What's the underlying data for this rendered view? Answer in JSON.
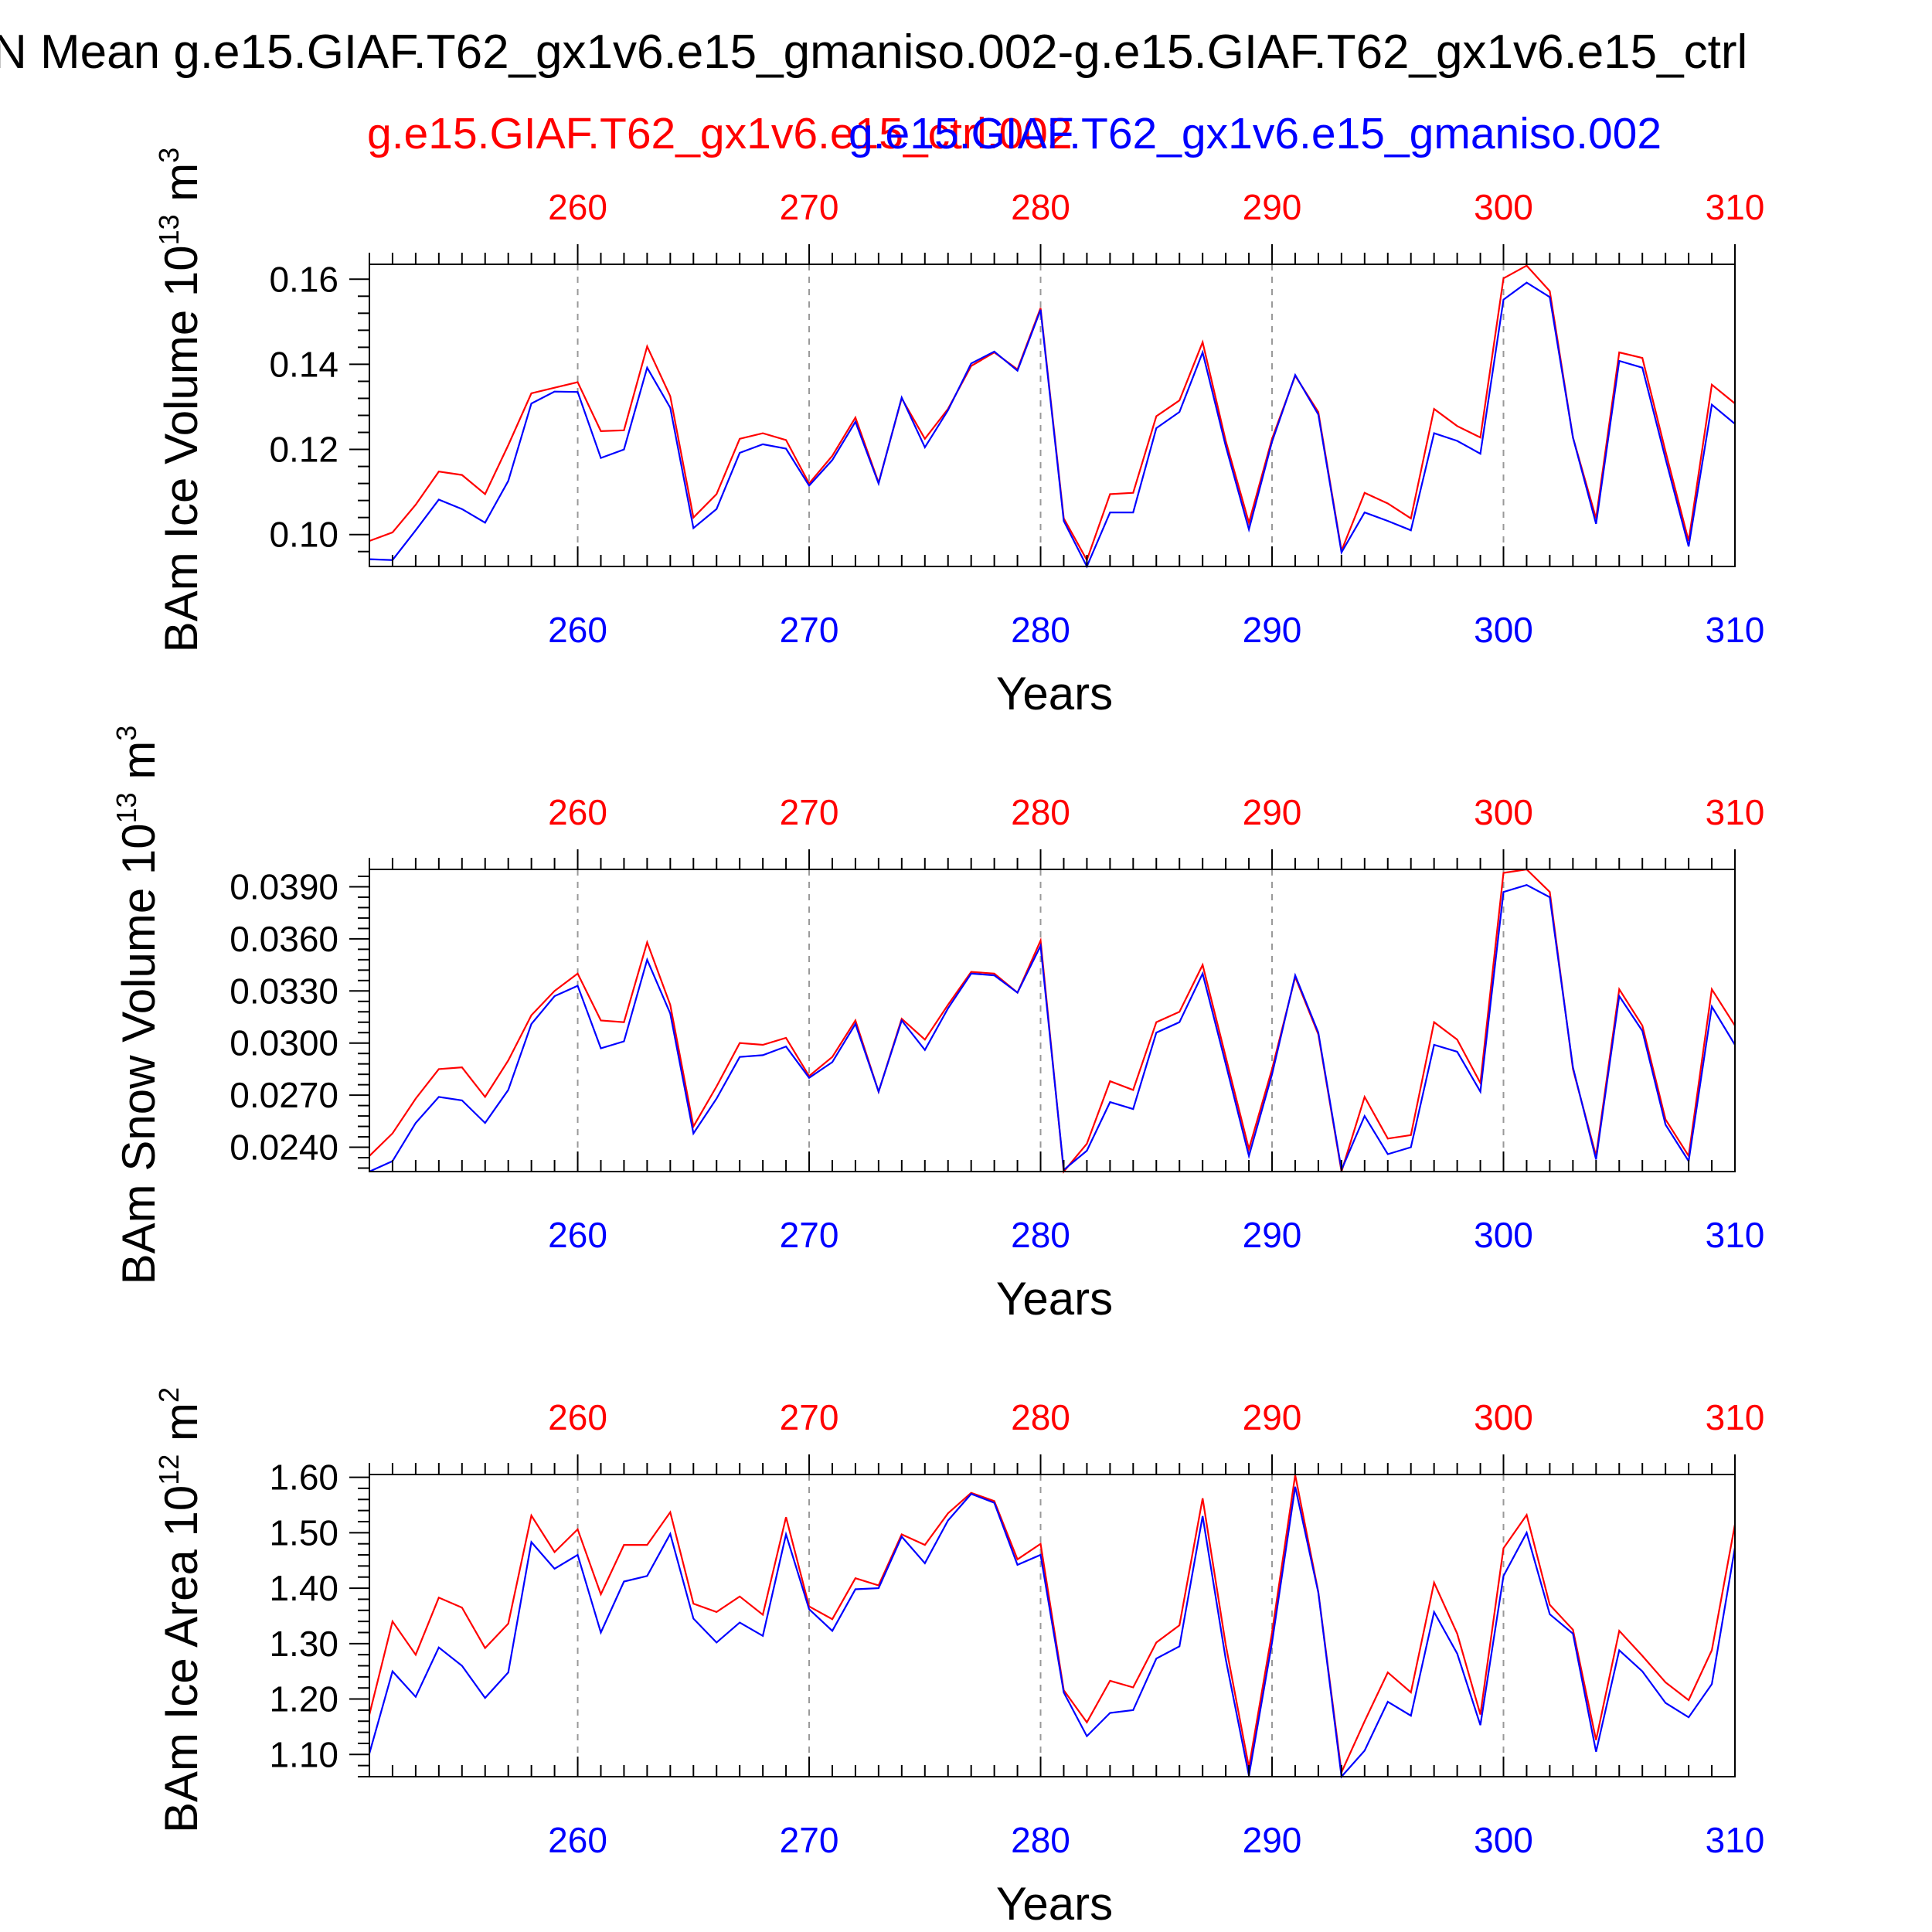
{
  "figure": {
    "title": "N Mean g.e15.GIAF.T62_gx1v6.e15_gmaniso.002-g.e15.GIAF.T62_gx1v6.e15_ctrl",
    "legend_red": "g.e15.GIAF.T62_gx1v6.e15_ctrl.002",
    "legend_blue": "g.e15.GIAF.T62_gx1v6.e15_gmaniso.002",
    "colors": {
      "ctrl": "#ff0000",
      "gmaniso": "#0000ff",
      "axis": "#000000",
      "grid": "#999999"
    }
  },
  "chart_data": [
    {
      "type": "line",
      "ylabel_main": "BAm Ice Volume 10",
      "ylabel_exp": "13",
      "ylabel_unit": " m",
      "ylabel_unit_exp": "3",
      "xlabel": "Years",
      "xlim": [
        251,
        310
      ],
      "ylim": [
        0.0925,
        0.1635
      ],
      "xticks": [
        260,
        270,
        280,
        290,
        300,
        310
      ],
      "xtick_labels": [
        "260",
        "270",
        "280",
        "290",
        "300",
        "310"
      ],
      "yticks": [
        0.1,
        0.12,
        0.14,
        0.16
      ],
      "ytick_labels": [
        "0.10",
        "0.12",
        "0.14",
        "0.16"
      ],
      "grid": "dashed vertical at major ticks",
      "x": [
        251,
        252,
        253,
        254,
        255,
        256,
        257,
        258,
        259,
        260,
        261,
        262,
        263,
        264,
        265,
        266,
        267,
        268,
        269,
        270,
        271,
        272,
        273,
        274,
        275,
        276,
        277,
        278,
        279,
        280,
        281,
        282,
        283,
        284,
        285,
        286,
        287,
        288,
        289,
        290,
        291,
        292,
        293,
        294,
        295,
        296,
        297,
        298,
        299,
        300,
        301,
        302,
        303,
        304,
        305,
        306,
        307,
        308,
        309,
        310
      ],
      "series": [
        {
          "name": "g.e15.GIAF.T62_gx1v6.e15_ctrl.002",
          "color": "#ff0000",
          "values": [
            0.0985,
            0.1005,
            0.107,
            0.1148,
            0.114,
            0.1095,
            0.121,
            0.1332,
            0.1345,
            0.1358,
            0.1243,
            0.1245,
            0.1442,
            0.1325,
            0.104,
            0.1095,
            0.1225,
            0.1238,
            0.1222,
            0.112,
            0.1185,
            0.1275,
            0.1122,
            0.132,
            0.1225,
            0.1295,
            0.1396,
            0.1428,
            0.1388,
            0.1532,
            0.1038,
            0.094,
            0.1095,
            0.1098,
            0.1278,
            0.1315,
            0.1452,
            0.122,
            0.1028,
            0.1225,
            0.1373,
            0.1288,
            0.0962,
            0.1098,
            0.1073,
            0.1038,
            0.1295,
            0.1255,
            0.1228,
            0.1602,
            0.1632,
            0.1572,
            0.1228,
            0.1038,
            0.1428,
            0.1415,
            0.1195,
            0.0985,
            0.1352,
            0.1308
          ]
        },
        {
          "name": "g.e15.GIAF.T62_gx1v6.e15_gmaniso.002",
          "color": "#0000ff",
          "values": [
            0.0942,
            0.094,
            0.101,
            0.1082,
            0.106,
            0.1028,
            0.1126,
            0.1308,
            0.1336,
            0.1335,
            0.118,
            0.12,
            0.1392,
            0.1298,
            0.1015,
            0.106,
            0.1192,
            0.1212,
            0.1202,
            0.1115,
            0.1175,
            0.1265,
            0.112,
            0.1322,
            0.1205,
            0.1292,
            0.1402,
            0.143,
            0.1385,
            0.1528,
            0.1032,
            0.0925,
            0.1052,
            0.1052,
            0.125,
            0.1288,
            0.1428,
            0.1208,
            0.1012,
            0.1218,
            0.1375,
            0.1282,
            0.0958,
            0.1052,
            0.1032,
            0.101,
            0.1238,
            0.122,
            0.119,
            0.1552,
            0.1592,
            0.1558,
            0.1228,
            0.1025,
            0.1408,
            0.1392,
            0.1178,
            0.0972,
            0.1305,
            0.126
          ]
        }
      ]
    },
    {
      "type": "line",
      "ylabel_main": "BAm Snow Volume 10",
      "ylabel_exp": "13",
      "ylabel_unit": " m",
      "ylabel_unit_exp": "3",
      "xlabel": "Years",
      "xlim": [
        251,
        310
      ],
      "ylim": [
        0.0226,
        0.04
      ],
      "xticks": [
        260,
        270,
        280,
        290,
        300,
        310
      ],
      "xtick_labels": [
        "260",
        "270",
        "280",
        "290",
        "300",
        "310"
      ],
      "yticks": [
        0.024,
        0.027,
        0.03,
        0.033,
        0.036,
        0.039
      ],
      "ytick_labels": [
        "0.0240",
        "0.0270",
        "0.0300",
        "0.0330",
        "0.0360",
        "0.0390"
      ],
      "grid": "dashed vertical at major ticks",
      "x": [
        251,
        252,
        253,
        254,
        255,
        256,
        257,
        258,
        259,
        260,
        261,
        262,
        263,
        264,
        265,
        266,
        267,
        268,
        269,
        270,
        271,
        272,
        273,
        274,
        275,
        276,
        277,
        278,
        279,
        280,
        281,
        282,
        283,
        284,
        285,
        286,
        287,
        288,
        289,
        290,
        291,
        292,
        293,
        294,
        295,
        296,
        297,
        298,
        299,
        300,
        301,
        302,
        303,
        304,
        305,
        306,
        307,
        308,
        309,
        310
      ],
      "series": [
        {
          "name": "g.e15.GIAF.T62_gx1v6.e15_ctrl.002",
          "color": "#ff0000",
          "values": [
            0.0235,
            0.0248,
            0.0268,
            0.0285,
            0.0286,
            0.0269,
            0.029,
            0.0316,
            0.033,
            0.034,
            0.0313,
            0.0312,
            0.0358,
            0.0322,
            0.0252,
            0.0275,
            0.03,
            0.0299,
            0.0303,
            0.0281,
            0.0292,
            0.0313,
            0.0272,
            0.0314,
            0.0302,
            0.0322,
            0.0341,
            0.034,
            0.0329,
            0.0359,
            0.0226,
            0.0242,
            0.0278,
            0.0273,
            0.0312,
            0.0318,
            0.0345,
            0.0292,
            0.0239,
            0.0285,
            0.0338,
            0.0305,
            0.0226,
            0.0269,
            0.0245,
            0.0247,
            0.0312,
            0.0302,
            0.0277,
            0.0398,
            0.04,
            0.0387,
            0.0285,
            0.0235,
            0.0331,
            0.031,
            0.0256,
            0.0235,
            0.0331,
            0.031
          ]
        },
        {
          "name": "g.e15.GIAF.T62_gx1v6.e15_gmaniso.002",
          "color": "#0000ff",
          "values": [
            0.0226,
            0.0232,
            0.0254,
            0.0269,
            0.0267,
            0.0254,
            0.0273,
            0.0311,
            0.0327,
            0.0333,
            0.0297,
            0.0301,
            0.0348,
            0.0317,
            0.0248,
            0.0268,
            0.0292,
            0.0293,
            0.0298,
            0.028,
            0.0289,
            0.0311,
            0.0272,
            0.0313,
            0.0296,
            0.032,
            0.034,
            0.0339,
            0.0329,
            0.0356,
            0.0227,
            0.0238,
            0.0266,
            0.0262,
            0.0306,
            0.0312,
            0.034,
            0.0288,
            0.0235,
            0.0282,
            0.0339,
            0.0306,
            0.0227,
            0.0258,
            0.0236,
            0.024,
            0.0299,
            0.0295,
            0.0272,
            0.0387,
            0.0391,
            0.0384,
            0.0286,
            0.0233,
            0.0327,
            0.0307,
            0.0253,
            0.0232,
            0.0321,
            0.0299
          ]
        }
      ]
    },
    {
      "type": "line",
      "ylabel_main": "BAm Ice Area 10",
      "ylabel_exp": "12",
      "ylabel_unit": " m",
      "ylabel_unit_exp": "2",
      "xlabel": "Years",
      "xlim": [
        251,
        310
      ],
      "ylim": [
        1.06,
        1.605
      ],
      "xticks": [
        260,
        270,
        280,
        290,
        300,
        310
      ],
      "xtick_labels": [
        "260",
        "270",
        "280",
        "290",
        "300",
        "310"
      ],
      "yticks": [
        1.1,
        1.2,
        1.3,
        1.4,
        1.5,
        1.6
      ],
      "ytick_labels": [
        "1.10",
        "1.20",
        "1.30",
        "1.40",
        "1.50",
        "1.60"
      ],
      "grid": "dashed vertical at major ticks",
      "x": [
        251,
        252,
        253,
        254,
        255,
        256,
        257,
        258,
        259,
        260,
        261,
        262,
        263,
        264,
        265,
        266,
        267,
        268,
        269,
        270,
        271,
        272,
        273,
        274,
        275,
        276,
        277,
        278,
        279,
        280,
        281,
        282,
        283,
        284,
        285,
        286,
        287,
        288,
        289,
        290,
        291,
        292,
        293,
        294,
        295,
        296,
        297,
        298,
        299,
        300,
        301,
        302,
        303,
        304,
        305,
        306,
        307,
        308,
        309,
        310
      ],
      "series": [
        {
          "name": "g.e15.GIAF.T62_gx1v6.e15_ctrl.002",
          "color": "#ff0000",
          "values": [
            1.172,
            1.34,
            1.28,
            1.383,
            1.365,
            1.292,
            1.336,
            1.531,
            1.465,
            1.506,
            1.389,
            1.478,
            1.478,
            1.537,
            1.372,
            1.357,
            1.385,
            1.352,
            1.528,
            1.367,
            1.344,
            1.418,
            1.405,
            1.497,
            1.478,
            1.535,
            1.572,
            1.557,
            1.452,
            1.48,
            1.216,
            1.158,
            1.233,
            1.221,
            1.302,
            1.333,
            1.562,
            1.298,
            1.077,
            1.32,
            1.604,
            1.393,
            1.068,
            1.16,
            1.248,
            1.212,
            1.41,
            1.318,
            1.172,
            1.472,
            1.532,
            1.37,
            1.325,
            1.126,
            1.323,
            1.278,
            1.23,
            1.198,
            1.288,
            1.515
          ]
        },
        {
          "name": "g.e15.GIAF.T62_gx1v6.e15_gmaniso.002",
          "color": "#0000ff",
          "values": [
            1.102,
            1.25,
            1.204,
            1.293,
            1.26,
            1.202,
            1.248,
            1.483,
            1.435,
            1.46,
            1.32,
            1.412,
            1.422,
            1.498,
            1.345,
            1.302,
            1.338,
            1.314,
            1.497,
            1.362,
            1.323,
            1.398,
            1.4,
            1.493,
            1.445,
            1.522,
            1.57,
            1.554,
            1.442,
            1.46,
            1.212,
            1.133,
            1.175,
            1.18,
            1.273,
            1.295,
            1.53,
            1.272,
            1.062,
            1.302,
            1.583,
            1.392,
            1.06,
            1.107,
            1.195,
            1.17,
            1.357,
            1.282,
            1.153,
            1.422,
            1.5,
            1.353,
            1.318,
            1.105,
            1.288,
            1.25,
            1.193,
            1.167,
            1.227,
            1.473
          ]
        }
      ]
    }
  ]
}
